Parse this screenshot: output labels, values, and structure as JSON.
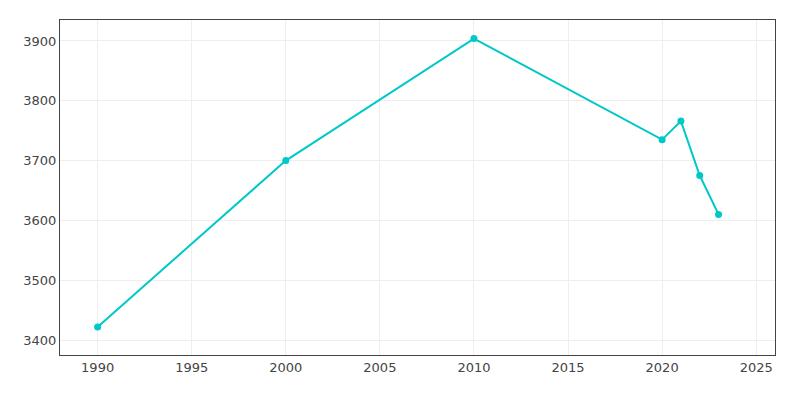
{
  "chart_data": {
    "type": "line",
    "x": [
      1990,
      2000,
      2010,
      2020,
      2021,
      2022,
      2023
    ],
    "values": [
      3422,
      3700,
      3904,
      3735,
      3766,
      3675,
      3610
    ],
    "color": "#00c8c8",
    "marker": "circle",
    "xlim": [
      1988,
      2026
    ],
    "ylim": [
      3375,
      3935
    ],
    "xticks": [
      1990,
      1995,
      2000,
      2005,
      2010,
      2015,
      2020,
      2025
    ],
    "yticks": [
      3400,
      3500,
      3600,
      3700,
      3800,
      3900
    ],
    "grid": true
  }
}
